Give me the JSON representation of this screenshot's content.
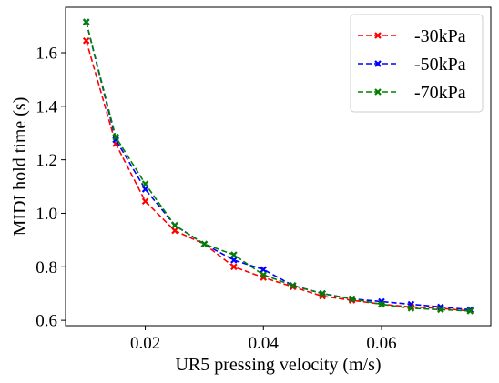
{
  "chart_data": {
    "type": "line",
    "xlabel": "UR5 pressing velocity (m/s)",
    "ylabel": "MIDI hold time (s)",
    "xlim": [
      0.0065,
      0.0785
    ],
    "ylim": [
      0.58,
      1.77
    ],
    "xticks": [
      0.02,
      0.04,
      0.06
    ],
    "xtick_labels": [
      "0.02",
      "0.04",
      "0.06"
    ],
    "yticks": [
      0.6,
      0.8,
      1.0,
      1.2,
      1.4,
      1.6
    ],
    "ytick_labels": [
      "0.6",
      "0.8",
      "1.0",
      "1.2",
      "1.4",
      "1.6"
    ],
    "legend_position": "top-right",
    "grid": false,
    "x": [
      0.01,
      0.015,
      0.02,
      0.025,
      0.03,
      0.035,
      0.04,
      0.045,
      0.05,
      0.055,
      0.06,
      0.065,
      0.07,
      0.075
    ],
    "series": [
      {
        "name": "-30kPa",
        "color": "#ff0000",
        "marker": "x",
        "linestyle": "dashed",
        "values": [
          1.645,
          1.26,
          1.045,
          0.935,
          0.885,
          0.8,
          0.76,
          0.725,
          0.69,
          0.675,
          0.66,
          0.65,
          0.645,
          0.635
        ]
      },
      {
        "name": "-50kPa",
        "color": "#0000ff",
        "marker": "x",
        "linestyle": "dashed",
        "values": [
          1.715,
          1.275,
          1.09,
          0.955,
          0.885,
          0.825,
          0.79,
          0.73,
          0.7,
          0.68,
          0.67,
          0.66,
          0.65,
          0.64
        ]
      },
      {
        "name": "-70kPa",
        "color": "#008000",
        "marker": "x",
        "linestyle": "dashed",
        "values": [
          1.715,
          1.285,
          1.11,
          0.955,
          0.885,
          0.845,
          0.77,
          0.73,
          0.7,
          0.68,
          0.66,
          0.645,
          0.64,
          0.635
        ]
      }
    ]
  }
}
